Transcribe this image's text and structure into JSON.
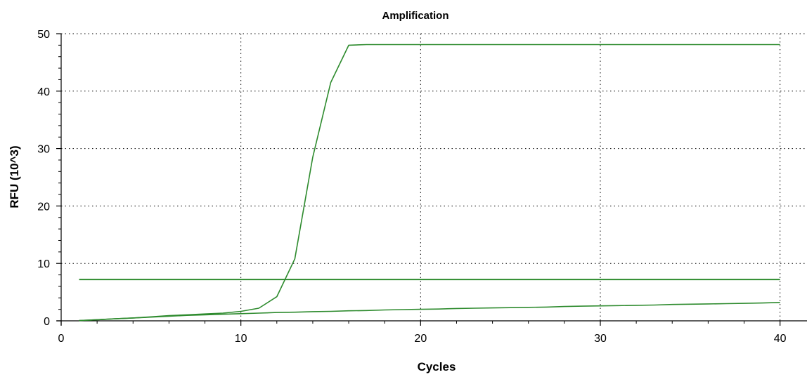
{
  "chart_data": {
    "type": "line",
    "title": "Amplification",
    "xlabel": "Cycles",
    "ylabel": "RFU (10^3)",
    "xlim": [
      0,
      41.5
    ],
    "ylim": [
      0,
      50
    ],
    "x_ticks": [
      0,
      10,
      20,
      30,
      40
    ],
    "y_ticks": [
      0,
      10,
      20,
      30,
      40,
      50
    ],
    "grid": true,
    "line_color": "#2e8b2e",
    "series": [
      {
        "x": [
          1,
          2,
          3,
          4,
          5,
          6,
          7,
          8,
          9,
          10,
          11,
          12,
          13,
          14,
          15,
          16,
          17,
          18,
          19,
          20,
          21,
          22,
          23,
          24,
          25,
          26,
          27,
          28,
          29,
          30,
          31,
          32,
          33,
          34,
          35,
          36,
          37,
          38,
          39,
          40
        ],
        "values": [
          0.05,
          0.2,
          0.35,
          0.5,
          0.7,
          0.9,
          1.05,
          1.2,
          1.35,
          1.65,
          2.2,
          4.2,
          10.8,
          28.5,
          41.5,
          48.0,
          48.1,
          48.1,
          48.1,
          48.1,
          48.1,
          48.1,
          48.1,
          48.1,
          48.1,
          48.1,
          48.1,
          48.1,
          48.1,
          48.1,
          48.1,
          48.1,
          48.1,
          48.1,
          48.1,
          48.1,
          48.1,
          48.1,
          48.1,
          48.1
        ]
      },
      {
        "x": [
          1,
          2,
          3,
          4,
          5,
          6,
          7,
          8,
          9,
          10,
          11,
          12,
          13,
          14,
          15,
          16,
          17,
          18,
          19,
          20,
          21,
          22,
          23,
          24,
          25,
          26,
          27,
          28,
          29,
          30,
          31,
          32,
          33,
          34,
          35,
          36,
          37,
          38,
          39,
          40
        ],
        "values": [
          0.05,
          0.2,
          0.35,
          0.5,
          0.65,
          0.8,
          0.95,
          1.05,
          1.15,
          1.25,
          1.35,
          1.45,
          1.5,
          1.6,
          1.65,
          1.75,
          1.8,
          1.9,
          1.95,
          2.0,
          2.05,
          2.15,
          2.2,
          2.25,
          2.3,
          2.35,
          2.4,
          2.5,
          2.55,
          2.6,
          2.65,
          2.7,
          2.75,
          2.85,
          2.9,
          2.95,
          3.0,
          3.05,
          3.1,
          3.2
        ]
      }
    ],
    "threshold": {
      "y": 7.2,
      "x_start": 1,
      "x_end": 40
    }
  }
}
